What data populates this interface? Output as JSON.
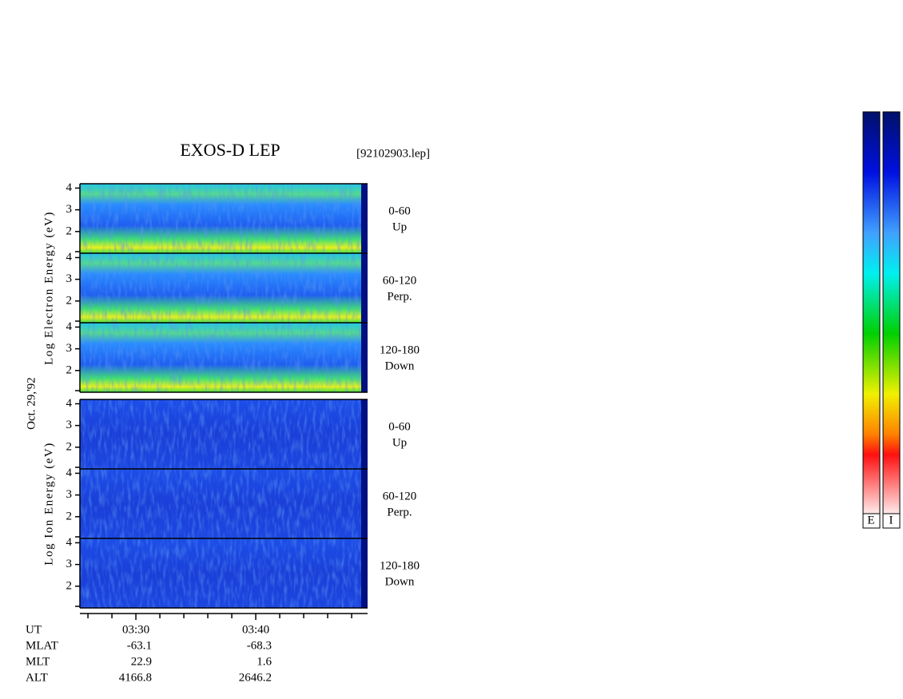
{
  "chart_data": {
    "type": "spectrogram",
    "title": "EXOS-D LEP",
    "file": "[92102903.lep]",
    "date": "Oct. 29,'92",
    "groups": [
      {
        "ylabel": "Log Electron Energy (eV)",
        "panels": [
          {
            "range": "0-60",
            "direction": "Up"
          },
          {
            "range": "60-120",
            "direction": "Perp."
          },
          {
            "range": "120-180",
            "direction": "Down"
          }
        ]
      },
      {
        "ylabel": "Log Ion Energy (eV)",
        "panels": [
          {
            "range": "0-60",
            "direction": "Up"
          },
          {
            "range": "60-120",
            "direction": "Perp."
          },
          {
            "range": "120-180",
            "direction": "Down"
          }
        ]
      }
    ],
    "ylim": [
      1,
      4.2
    ],
    "yticks": [
      2,
      3,
      4
    ],
    "xlim": [
      205.33,
      229.33
    ],
    "xticks": [
      {
        "value": 210,
        "label": "03:30"
      },
      {
        "value": 220,
        "label": "03:40"
      }
    ],
    "xminor": [
      206,
      208,
      212,
      214,
      216,
      218,
      222,
      224,
      226,
      228
    ],
    "xlabel": "UT",
    "orbit": [
      {
        "name": "MLAT",
        "values": [
          -63.1,
          -68.3
        ]
      },
      {
        "name": "MLT",
        "values": [
          22.9,
          1.6
        ]
      },
      {
        "name": "ALT",
        "values": [
          4166.8,
          2646.2
        ]
      }
    ],
    "colorbar_labels": [
      "E",
      "I"
    ]
  }
}
